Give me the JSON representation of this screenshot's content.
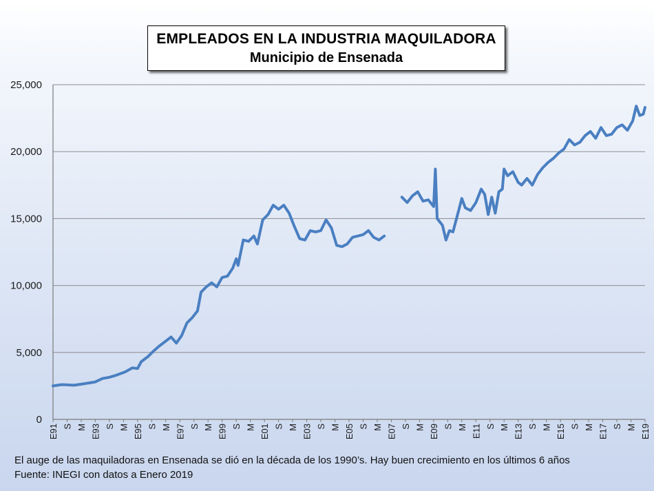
{
  "title": {
    "line1": "EMPLEADOS EN LA INDUSTRIA MAQUILADORA",
    "line2": "Municipio de Ensenada"
  },
  "footer": {
    "note": "El auge de las maquiladoras en Ensenada se dió en la década de los 1990’s. Hay buen crecimiento en los últimos 6 años",
    "source": "Fuente: INEGI con datos a Enero 2019"
  },
  "colors": {
    "line": "#4a7fc1",
    "grid": "#8c8c8c"
  },
  "chart_data": {
    "type": "line",
    "title": "EMPLEADOS EN LA INDUSTRIA MAQUILADORA",
    "subtitle": "Municipio de Ensenada",
    "ylim": [
      0,
      25000
    ],
    "y_ticks": [
      "0",
      "5,000",
      "10,000",
      "15,000",
      "20,000",
      "25,000"
    ],
    "x_tick_labels": [
      "E91",
      "S",
      "M",
      "E93",
      "S",
      "M",
      "E95",
      "S",
      "M",
      "E97",
      "S",
      "M",
      "E99",
      "S",
      "M",
      "E01",
      "S",
      "M",
      "E03",
      "S",
      "M",
      "E05",
      "S",
      "M",
      "E07",
      "S",
      "M",
      "E09",
      "S",
      "M",
      "E11",
      "S",
      "M",
      "E13",
      "S",
      "M",
      "E15",
      "S",
      "M",
      "E17",
      "S",
      "M",
      "E19"
    ],
    "grid": "horizontal",
    "legend": "none",
    "series": [
      {
        "segments": [
          [
            [
              "1991-01",
              2500
            ],
            [
              "1991-06",
              2600
            ],
            [
              "1992-01",
              2550
            ],
            [
              "1992-06",
              2650
            ],
            [
              "1993-01",
              2800
            ],
            [
              "1993-05",
              3050
            ],
            [
              "1993-09",
              3150
            ],
            [
              "1994-01",
              3300
            ],
            [
              "1994-06",
              3550
            ],
            [
              "1994-10",
              3850
            ],
            [
              "1995-01",
              3800
            ],
            [
              "1995-03",
              4300
            ],
            [
              "1995-07",
              4700
            ],
            [
              "1995-10",
              5100
            ],
            [
              "1996-01",
              5450
            ],
            [
              "1996-05",
              5850
            ],
            [
              "1996-08",
              6150
            ],
            [
              "1996-11",
              5700
            ],
            [
              "1997-02",
              6250
            ],
            [
              "1997-05",
              7200
            ],
            [
              "1997-08",
              7600
            ],
            [
              "1997-11",
              8100
            ],
            [
              "1998-01",
              9500
            ],
            [
              "1998-04",
              9900
            ],
            [
              "1998-07",
              10200
            ],
            [
              "1998-10",
              9900
            ],
            [
              "1999-01",
              10600
            ],
            [
              "1999-04",
              10700
            ],
            [
              "1999-07",
              11300
            ],
            [
              "1999-09",
              12000
            ],
            [
              "1999-10",
              11500
            ],
            [
              "2000-01",
              13400
            ],
            [
              "2000-04",
              13300
            ],
            [
              "2000-07",
              13700
            ],
            [
              "2000-09",
              13100
            ],
            [
              "2000-12",
              14900
            ],
            [
              "2001-03",
              15300
            ],
            [
              "2001-06",
              16000
            ],
            [
              "2001-09",
              15700
            ],
            [
              "2001-12",
              16000
            ],
            [
              "2002-03",
              15400
            ],
            [
              "2002-06",
              14400
            ],
            [
              "2002-09",
              13500
            ],
            [
              "2002-12",
              13400
            ],
            [
              "2003-03",
              14100
            ],
            [
              "2003-06",
              14000
            ],
            [
              "2003-09",
              14100
            ],
            [
              "2003-12",
              14900
            ],
            [
              "2004-03",
              14300
            ],
            [
              "2004-06",
              13000
            ],
            [
              "2004-09",
              12900
            ],
            [
              "2004-12",
              13100
            ],
            [
              "2005-03",
              13600
            ],
            [
              "2005-06",
              13700
            ],
            [
              "2005-09",
              13800
            ],
            [
              "2005-12",
              14100
            ],
            [
              "2006-03",
              13600
            ],
            [
              "2006-06",
              13400
            ],
            [
              "2006-09",
              13700
            ]
          ],
          [
            [
              "2007-07",
              16600
            ],
            [
              "2007-10",
              16200
            ],
            [
              "2008-01",
              16700
            ],
            [
              "2008-04",
              17000
            ],
            [
              "2008-07",
              16300
            ],
            [
              "2008-10",
              16400
            ],
            [
              "2009-01",
              15900
            ],
            [
              "2009-02",
              18700
            ],
            [
              "2009-03",
              15000
            ],
            [
              "2009-06",
              14500
            ],
            [
              "2009-08",
              13400
            ],
            [
              "2009-10",
              14100
            ],
            [
              "2009-12",
              14000
            ],
            [
              "2010-03",
              15500
            ],
            [
              "2010-05",
              16500
            ],
            [
              "2010-07",
              15800
            ],
            [
              "2010-10",
              15600
            ],
            [
              "2011-01",
              16200
            ],
            [
              "2011-04",
              17200
            ],
            [
              "2011-06",
              16800
            ],
            [
              "2011-08",
              15300
            ],
            [
              "2011-10",
              16600
            ],
            [
              "2011-12",
              15400
            ],
            [
              "2012-02",
              17000
            ],
            [
              "2012-04",
              17200
            ],
            [
              "2012-05",
              18700
            ],
            [
              "2012-07",
              18200
            ],
            [
              "2012-10",
              18500
            ],
            [
              "2013-01",
              17700
            ],
            [
              "2013-03",
              17500
            ],
            [
              "2013-06",
              18000
            ],
            [
              "2013-09",
              17500
            ],
            [
              "2013-12",
              18300
            ],
            [
              "2014-03",
              18800
            ],
            [
              "2014-06",
              19200
            ],
            [
              "2014-09",
              19500
            ],
            [
              "2014-12",
              19900
            ],
            [
              "2015-03",
              20200
            ],
            [
              "2015-06",
              20900
            ],
            [
              "2015-09",
              20500
            ],
            [
              "2015-12",
              20700
            ],
            [
              "2016-03",
              21200
            ],
            [
              "2016-06",
              21500
            ],
            [
              "2016-09",
              21000
            ],
            [
              "2016-12",
              21800
            ],
            [
              "2017-03",
              21200
            ],
            [
              "2017-06",
              21300
            ],
            [
              "2017-09",
              21800
            ],
            [
              "2017-12",
              22000
            ],
            [
              "2018-03",
              21600
            ],
            [
              "2018-06",
              22300
            ],
            [
              "2018-08",
              23400
            ],
            [
              "2018-10",
              22700
            ],
            [
              "2018-12",
              22800
            ],
            [
              "2019-01",
              23300
            ]
          ]
        ]
      }
    ]
  }
}
